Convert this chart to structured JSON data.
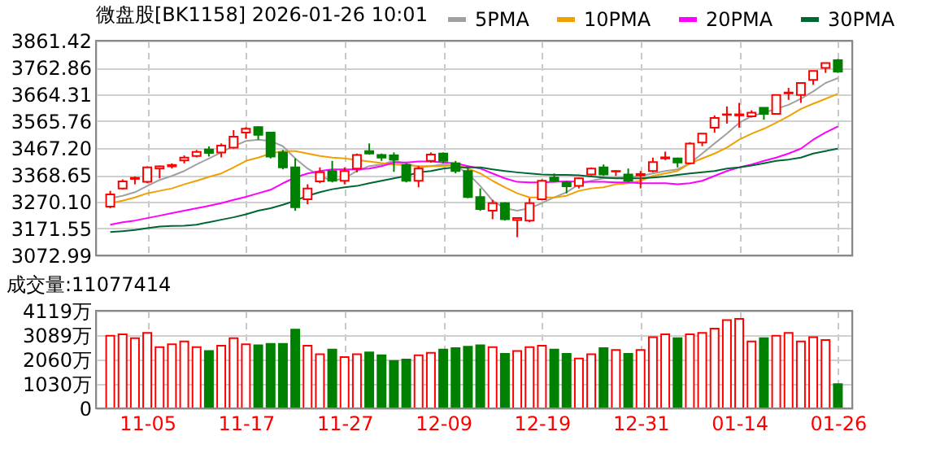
{
  "chart_data": [
    {
      "type": "candlestick",
      "title": "微盘股[BK1158] 2026-01-26 10:01",
      "categories": [
        null,
        null,
        null,
        null,
        null,
        null,
        null,
        null,
        null,
        null,
        null,
        null,
        null,
        null,
        null,
        null,
        null,
        null,
        null,
        null,
        null,
        null,
        null,
        null,
        null,
        null,
        null,
        null,
        null,
        null,
        null,
        null,
        null,
        null,
        null,
        null,
        null,
        null,
        null,
        null,
        null,
        null,
        null,
        null,
        null,
        null,
        null,
        null,
        null,
        null,
        null,
        null,
        null,
        null,
        null,
        null,
        null,
        null,
        null,
        null
      ],
      "ohlc": [
        [
          3252,
          3310,
          3246,
          3297
        ],
        [
          3319,
          3352,
          3316,
          3345
        ],
        [
          3354,
          3363,
          3334,
          3358
        ],
        [
          3343,
          3400,
          3338,
          3396
        ],
        [
          3392,
          3403,
          3356,
          3400
        ],
        [
          3400,
          3411,
          3392,
          3405
        ],
        [
          3422,
          3440,
          3411,
          3432
        ],
        [
          3438,
          3460,
          3433,
          3453
        ],
        [
          3462,
          3473,
          3436,
          3449
        ],
        [
          3451,
          3484,
          3433,
          3476
        ],
        [
          3469,
          3533,
          3465,
          3509
        ],
        [
          3524,
          3544,
          3502,
          3538
        ],
        [
          3544,
          3547,
          3498,
          3516
        ],
        [
          3524,
          3527,
          3429,
          3436
        ],
        [
          3451,
          3460,
          3389,
          3396
        ],
        [
          3396,
          3429,
          3237,
          3250
        ],
        [
          3279,
          3334,
          3261,
          3319
        ],
        [
          3345,
          3396,
          3338,
          3378
        ],
        [
          3383,
          3420,
          3341,
          3347
        ],
        [
          3347,
          3396,
          3334,
          3383
        ],
        [
          3392,
          3447,
          3378,
          3442
        ],
        [
          3456,
          3484,
          3443,
          3447
        ],
        [
          3442,
          3447,
          3420,
          3432
        ],
        [
          3440,
          3451,
          3380,
          3425
        ],
        [
          3405,
          3411,
          3341,
          3347
        ],
        [
          3347,
          3401,
          3323,
          3392
        ],
        [
          3420,
          3451,
          3414,
          3443
        ],
        [
          3447,
          3451,
          3411,
          3420
        ],
        [
          3411,
          3420,
          3374,
          3383
        ],
        [
          3383,
          3396,
          3283,
          3287
        ],
        [
          3287,
          3319,
          3237,
          3243
        ],
        [
          3237,
          3277,
          3206,
          3265
        ],
        [
          3265,
          3268,
          3201,
          3206
        ],
        [
          3203,
          3213,
          3140,
          3210
        ],
        [
          3201,
          3283,
          3195,
          3265
        ],
        [
          3279,
          3352,
          3275,
          3347
        ],
        [
          3359,
          3374,
          3341,
          3347
        ],
        [
          3341,
          3347,
          3301,
          3327
        ],
        [
          3328,
          3359,
          3319,
          3356
        ],
        [
          3370,
          3396,
          3367,
          3392
        ],
        [
          3396,
          3407,
          3365,
          3370
        ],
        [
          3381,
          3385,
          3365,
          3383
        ],
        [
          3370,
          3392,
          3341,
          3347
        ],
        [
          3367,
          3383,
          3319,
          3372
        ],
        [
          3383,
          3432,
          3378,
          3416
        ],
        [
          3429,
          3454,
          3423,
          3433
        ],
        [
          3429,
          3432,
          3396,
          3414
        ],
        [
          3411,
          3489,
          3407,
          3484
        ],
        [
          3487,
          3520,
          3474,
          3520
        ],
        [
          3542,
          3587,
          3524,
          3578
        ],
        [
          3589,
          3620,
          3557,
          3591
        ],
        [
          3587,
          3633,
          3542,
          3591
        ],
        [
          3584,
          3606,
          3579,
          3597
        ],
        [
          3615,
          3615,
          3571,
          3593
        ],
        [
          3593,
          3662,
          3590,
          3662
        ],
        [
          3668,
          3688,
          3644,
          3671
        ],
        [
          3662,
          3706,
          3633,
          3706
        ],
        [
          3717,
          3750,
          3699,
          3750
        ],
        [
          3761,
          3779,
          3743,
          3779
        ],
        [
          3790,
          3794,
          3743,
          3748
        ]
      ],
      "colors": [
        "#ff0000",
        "#ff0000",
        "#ff0000",
        "#ff0000",
        "#ff0000",
        "#ff0000",
        "#ff0000",
        "#ff0000",
        "#008000",
        "#ff0000",
        "#ff0000",
        "#ff0000",
        "#008000",
        "#008000",
        "#008000",
        "#008000",
        "#ff0000",
        "#ff0000",
        "#008000",
        "#ff0000",
        "#ff0000",
        "#008000",
        "#008000",
        "#008000",
        "#008000",
        "#ff0000",
        "#ff0000",
        "#008000",
        "#008000",
        "#008000",
        "#008000",
        "#ff0000",
        "#008000",
        "#ff0000",
        "#ff0000",
        "#ff0000",
        "#008000",
        "#008000",
        "#ff0000",
        "#ff0000",
        "#008000",
        "#ff0000",
        "#008000",
        "#ff0000",
        "#ff0000",
        "#ff0000",
        "#008000",
        "#ff0000",
        "#ff0000",
        "#ff0000",
        "#ff0000",
        "#ff0000",
        "#ff0000",
        "#008000",
        "#ff0000",
        "#ff0000",
        "#ff0000",
        "#ff0000",
        "#ff0000",
        "#008000"
      ],
      "series": [
        {
          "name": "5PMA",
          "type": "line",
          "color": "#a0a0a0",
          "values": [
            3283,
            3292,
            3305,
            3328,
            3350,
            3365,
            3383,
            3407,
            3429,
            3451,
            3474,
            3493,
            3498,
            3493,
            3474,
            3429,
            3392,
            3365,
            3347,
            3356,
            3383,
            3401,
            3407,
            3420,
            3411,
            3396,
            3401,
            3407,
            3401,
            3374,
            3328,
            3274,
            3246,
            3237,
            3246,
            3265,
            3286,
            3305,
            3334,
            3347,
            3356,
            3359,
            3359,
            3365,
            3374,
            3383,
            3389,
            3411,
            3447,
            3484,
            3520,
            3560,
            3584,
            3597,
            3611,
            3626,
            3648,
            3675,
            3706,
            3724
          ]
        },
        {
          "name": "10PMA",
          "type": "line",
          "color": "#f0a000",
          "values": [
            3265,
            3274,
            3286,
            3301,
            3310,
            3319,
            3334,
            3347,
            3361,
            3374,
            3396,
            3420,
            3432,
            3447,
            3456,
            3456,
            3447,
            3438,
            3432,
            3429,
            3423,
            3418,
            3412,
            3407,
            3405,
            3401,
            3401,
            3401,
            3405,
            3392,
            3374,
            3347,
            3323,
            3301,
            3286,
            3286,
            3286,
            3292,
            3310,
            3319,
            3323,
            3334,
            3338,
            3347,
            3365,
            3374,
            3383,
            3411,
            3429,
            3447,
            3469,
            3498,
            3520,
            3538,
            3560,
            3584,
            3611,
            3630,
            3648,
            3666
          ]
        },
        {
          "name": "20PMA",
          "type": "line",
          "color": "#ff00ff",
          "values": [
            3186,
            3195,
            3201,
            3210,
            3219,
            3228,
            3237,
            3246,
            3255,
            3265,
            3277,
            3288,
            3301,
            3314,
            3338,
            3359,
            3374,
            3383,
            3389,
            3389,
            3389,
            3392,
            3401,
            3414,
            3414,
            3418,
            3418,
            3414,
            3411,
            3401,
            3392,
            3374,
            3356,
            3343,
            3341,
            3341,
            3343,
            3345,
            3343,
            3343,
            3343,
            3341,
            3341,
            3338,
            3338,
            3338,
            3334,
            3338,
            3347,
            3365,
            3383,
            3396,
            3407,
            3420,
            3432,
            3447,
            3465,
            3498,
            3524,
            3547
          ]
        },
        {
          "name": "30PMA",
          "type": "line",
          "color": "#006633",
          "values": [
            3159,
            3162,
            3166,
            3173,
            3179,
            3181,
            3182,
            3186,
            3195,
            3204,
            3213,
            3224,
            3237,
            3246,
            3259,
            3274,
            3292,
            3305,
            3316,
            3323,
            3328,
            3338,
            3347,
            3356,
            3365,
            3378,
            3383,
            3392,
            3396,
            3396,
            3396,
            3389,
            3383,
            3378,
            3374,
            3370,
            3369,
            3369,
            3367,
            3363,
            3359,
            3356,
            3356,
            3356,
            3359,
            3363,
            3369,
            3374,
            3378,
            3383,
            3392,
            3396,
            3403,
            3411,
            3420,
            3425,
            3432,
            3447,
            3456,
            3465
          ]
        }
      ],
      "ylim": [
        3072.99,
        3861.42
      ],
      "yticks": [
        3072.99,
        3171.55,
        {
          "value": 3270.1,
          "label": "3270.10"
        },
        3368.65,
        {
          "value": 3467.2,
          "label": "3467.20"
        },
        3565.76,
        3664.31,
        3762.86,
        3861.42
      ],
      "grid": true,
      "legend": "top right",
      "tick_labels": "y"
    },
    {
      "type": "bar",
      "title": "成交量:11077414",
      "categories": [
        null,
        null,
        null,
        "11-05",
        null,
        null,
        null,
        null,
        null,
        null,
        null,
        "11-17",
        null,
        null,
        null,
        null,
        null,
        null,
        null,
        "11-27",
        null,
        null,
        null,
        null,
        null,
        null,
        null,
        "12-09",
        null,
        null,
        null,
        null,
        null,
        null,
        null,
        "12-19",
        null,
        null,
        null,
        null,
        null,
        null,
        null,
        "12-31",
        null,
        null,
        null,
        null,
        null,
        null,
        null,
        "01-14",
        null,
        null,
        null,
        null,
        null,
        null,
        null,
        "01-26"
      ],
      "values": [
        3060,
        3120,
        2960,
        3180,
        2580,
        2700,
        2820,
        2580,
        2420,
        2640,
        2960,
        2700,
        2660,
        2720,
        2720,
        3320,
        2640,
        2280,
        2480,
        2160,
        2280,
        2360,
        2240,
        2000,
        2060,
        2240,
        2340,
        2480,
        2540,
        2600,
        2660,
        2580,
        2300,
        2420,
        2580,
        2640,
        2480,
        2300,
        2100,
        2280,
        2540,
        2460,
        2300,
        2460,
        3000,
        3120,
        2960,
        3120,
        3180,
        3360,
        3720,
        3780,
        2820,
        2960,
        3060,
        3180,
        2820,
        3000,
        2880,
        1020
      ],
      "colors": [
        "#ff0000",
        "#ff0000",
        "#ff0000",
        "#ff0000",
        "#ff0000",
        "#ff0000",
        "#ff0000",
        "#ff0000",
        "#008000",
        "#ff0000",
        "#ff0000",
        "#ff0000",
        "#008000",
        "#008000",
        "#008000",
        "#008000",
        "#ff0000",
        "#ff0000",
        "#008000",
        "#ff0000",
        "#ff0000",
        "#008000",
        "#008000",
        "#008000",
        "#008000",
        "#ff0000",
        "#ff0000",
        "#008000",
        "#008000",
        "#008000",
        "#008000",
        "#ff0000",
        "#008000",
        "#ff0000",
        "#ff0000",
        "#ff0000",
        "#008000",
        "#008000",
        "#ff0000",
        "#ff0000",
        "#008000",
        "#ff0000",
        "#008000",
        "#ff0000",
        "#ff0000",
        "#ff0000",
        "#008000",
        "#ff0000",
        "#ff0000",
        "#ff0000",
        "#ff0000",
        "#ff0000",
        "#ff0000",
        "#008000",
        "#ff0000",
        "#ff0000",
        "#ff0000",
        "#ff0000",
        "#ff0000",
        "#008000"
      ],
      "ylim": [
        0,
        4119
      ],
      "yticks": [
        0,
        {
          "value": 1030,
          "label": "1030万"
        },
        {
          "value": 2060,
          "label": "2060万"
        },
        {
          "value": 3089,
          "label": "3089万"
        },
        {
          "value": 4119,
          "label": "4119万"
        }
      ],
      "grid": true
    }
  ]
}
